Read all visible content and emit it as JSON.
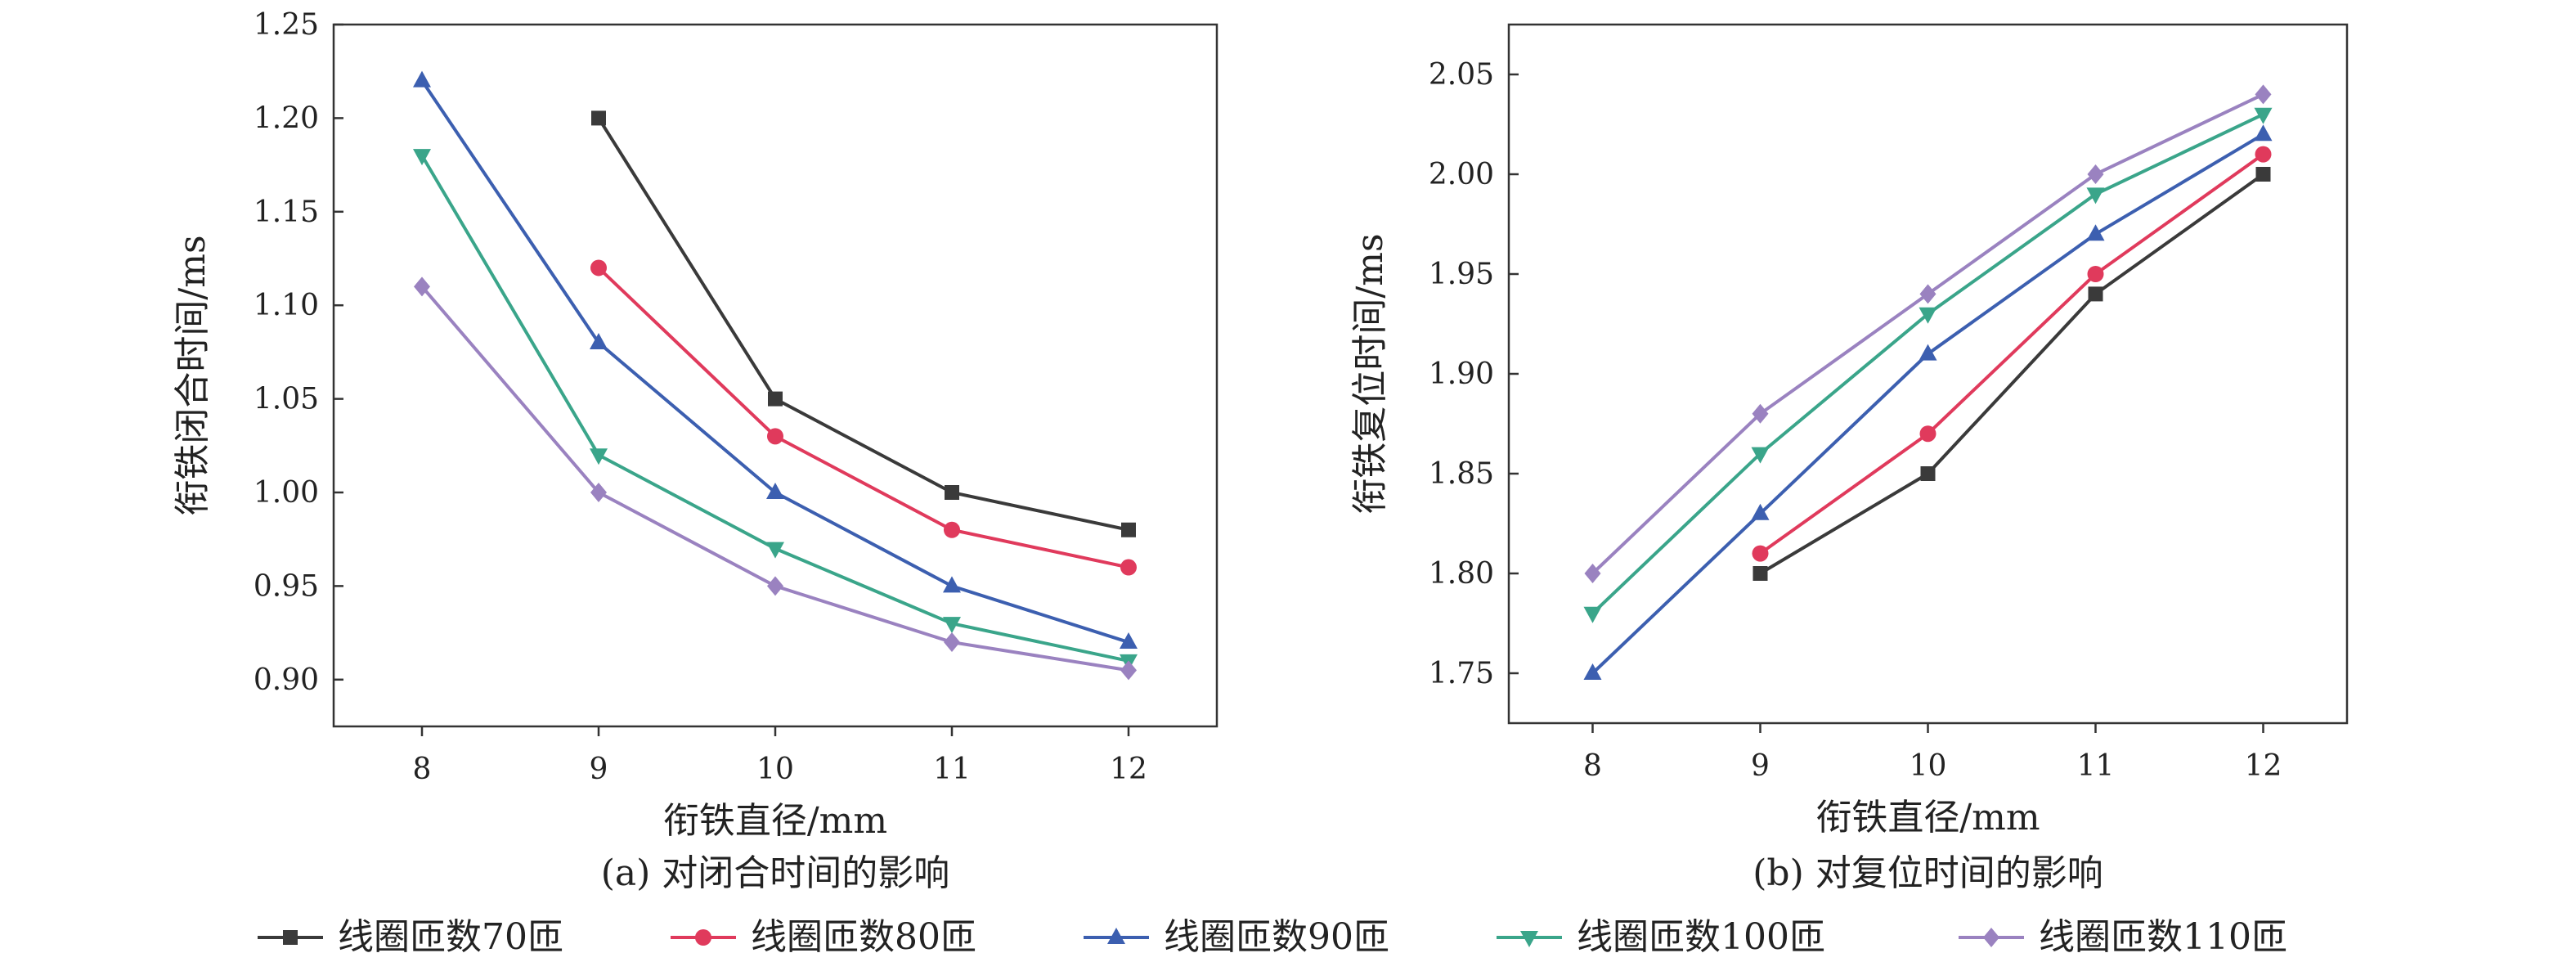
{
  "legend": {
    "items": [
      "线圈匝数70匝",
      "线圈匝数80匝",
      "线圈匝数90匝",
      "线圈匝数100匝",
      "线圈匝数110匝"
    ]
  },
  "styles": {
    "series_colors": [
      "#3a3a3a",
      "#e03a5c",
      "#3c5fb0",
      "#3aa58a",
      "#9a82c0"
    ],
    "markers": [
      "square",
      "circle",
      "triangle-up",
      "triangle-down",
      "diamond"
    ]
  },
  "chart_data": [
    {
      "type": "line",
      "caption": "(a) 对闭合时间的影响",
      "xlabel": "衔铁直径/mm",
      "ylabel": "衔铁闭合时间/ms",
      "x": [
        8,
        9,
        10,
        11,
        12
      ],
      "xlim": [
        7.5,
        12.5
      ],
      "ylim": [
        0.875,
        1.25
      ],
      "yticks": [
        "0.90",
        "0.95",
        "1.00",
        "1.05",
        "1.10",
        "1.15",
        "1.20",
        "1.25"
      ],
      "xticks": [
        "8",
        "9",
        "10",
        "11",
        "12"
      ],
      "grid": false,
      "series": [
        {
          "name": "线圈匝数70匝",
          "values": [
            null,
            1.2,
            1.05,
            1.0,
            0.98
          ]
        },
        {
          "name": "线圈匝数80匝",
          "values": [
            null,
            1.12,
            1.03,
            0.98,
            0.96
          ]
        },
        {
          "name": "线圈匝数90匝",
          "values": [
            1.22,
            1.08,
            1.0,
            0.95,
            0.92
          ]
        },
        {
          "name": "线圈匝数100匝",
          "values": [
            1.18,
            1.02,
            0.97,
            0.93,
            0.91
          ]
        },
        {
          "name": "线圈匝数110匝",
          "values": [
            1.11,
            1.0,
            0.95,
            0.92,
            0.905
          ]
        }
      ]
    },
    {
      "type": "line",
      "caption": "(b) 对复位时间的影响",
      "xlabel": "衔铁直径/mm",
      "ylabel": "衔铁复位时间/ms",
      "x": [
        8,
        9,
        10,
        11,
        12
      ],
      "xlim": [
        7.5,
        12.5
      ],
      "ylim": [
        1.725,
        2.075
      ],
      "yticks": [
        "1.75",
        "1.80",
        "1.85",
        "1.90",
        "1.95",
        "2.00",
        "2.05"
      ],
      "xticks": [
        "8",
        "9",
        "10",
        "11",
        "12"
      ],
      "grid": false,
      "series": [
        {
          "name": "线圈匝数70匝",
          "values": [
            null,
            1.8,
            1.85,
            1.94,
            2.0
          ]
        },
        {
          "name": "线圈匝数80匝",
          "values": [
            null,
            1.81,
            1.87,
            1.95,
            2.01
          ]
        },
        {
          "name": "线圈匝数90匝",
          "values": [
            1.75,
            1.83,
            1.91,
            1.97,
            2.02
          ]
        },
        {
          "name": "线圈匝数100匝",
          "values": [
            1.78,
            1.86,
            1.93,
            1.99,
            2.03
          ]
        },
        {
          "name": "线圈匝数110匝",
          "values": [
            1.8,
            1.88,
            1.94,
            2.0,
            2.04
          ]
        }
      ]
    }
  ]
}
